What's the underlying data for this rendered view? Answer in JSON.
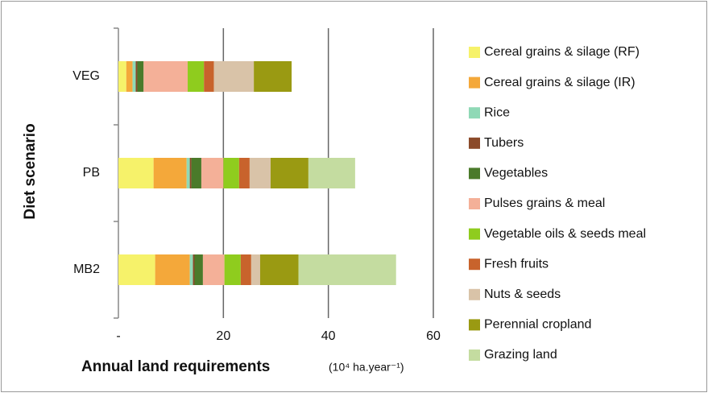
{
  "chart_data": {
    "type": "bar",
    "orientation": "horizontal",
    "stacked": true,
    "xlabel": "Annual land requirements",
    "xlabel_unit": "(10⁴ ha.year⁻¹)",
    "ylabel": "Diet scenario",
    "categories": [
      "VEG",
      "PB",
      "MB2"
    ],
    "series": [
      {
        "name": "Cereal grains & silage (RF)",
        "color": "#f6f26a",
        "values": [
          1.5,
          6.7,
          7.0
        ]
      },
      {
        "name": "Cereal grains & silage (IR)",
        "color": "#f4a83a",
        "values": [
          1.2,
          6.3,
          6.6
        ]
      },
      {
        "name": "Rice",
        "color": "#8fd9b6",
        "values": [
          0.6,
          0.6,
          0.6
        ]
      },
      {
        "name": "Tubers",
        "color": "#8b4a2a",
        "values": [
          0.3,
          0.3,
          0.3
        ]
      },
      {
        "name": "Vegetables",
        "color": "#4a7a2a",
        "values": [
          1.2,
          1.9,
          1.6
        ]
      },
      {
        "name": "Pulses grains & meal",
        "color": "#f4b098",
        "values": [
          8.4,
          4.2,
          4.1
        ]
      },
      {
        "name": "Vegetable oils & seeds meal",
        "color": "#8fcc1e",
        "values": [
          3.1,
          3.0,
          3.1
        ]
      },
      {
        "name": "Fresh fruits",
        "color": "#c8632c",
        "values": [
          1.9,
          2.0,
          2.0
        ]
      },
      {
        "name": "Nuts & seeds",
        "color": "#d9c3a8",
        "values": [
          7.6,
          4.0,
          1.7
        ]
      },
      {
        "name": "Perennial cropland",
        "color": "#9a9a12",
        "values": [
          7.2,
          7.2,
          7.3
        ]
      },
      {
        "name": "Grazing land",
        "color": "#c4dca0",
        "values": [
          0,
          8.9,
          18.6
        ]
      }
    ],
    "xlim": [
      0,
      60
    ],
    "xticks": [
      {
        "value": 0,
        "label": "-"
      },
      20,
      40,
      60
    ],
    "grid": true,
    "legend": "right"
  }
}
